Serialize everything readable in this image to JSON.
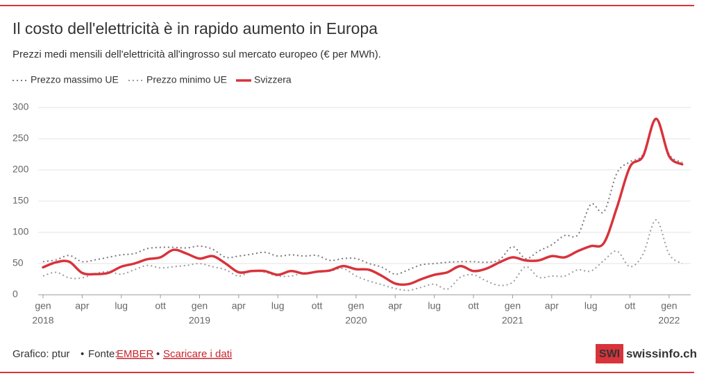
{
  "chart_data": {
    "type": "line",
    "title": "Il costo dell'elettricità è in rapido aumento in Europa",
    "subtitle": "Prezzi medi mensili dell'elettricità all'ingrosso sul mercato europeo (€ per MWh).",
    "categories": [
      "gen",
      null,
      null,
      "apr",
      null,
      null,
      "lug",
      null,
      null,
      "ott",
      null,
      null,
      "gen",
      null,
      null,
      "apr",
      null,
      null,
      "lug",
      null,
      null,
      "ott",
      null,
      null,
      "gen",
      null,
      null,
      "apr",
      null,
      null,
      "lug",
      null,
      null,
      "ott",
      null,
      null,
      "gen",
      null,
      null,
      "apr",
      null,
      null,
      "lug",
      null,
      null,
      "ott",
      null,
      null,
      "gen",
      null
    ],
    "year_labels": [
      "2018",
      "2019",
      "2020",
      "2021",
      "2022"
    ],
    "ylim": [
      0,
      300
    ],
    "yticks": [
      0,
      50,
      100,
      150,
      200,
      250,
      300
    ],
    "grid": true,
    "series": [
      {
        "name": "Prezzo massimo UE",
        "color": "#77777d",
        "style": "dotted",
        "values": [
          53,
          56,
          63,
          53,
          56,
          60,
          64,
          66,
          74,
          76,
          76,
          75,
          78,
          73,
          60,
          62,
          65,
          68,
          62,
          64,
          62,
          63,
          55,
          58,
          58,
          50,
          44,
          33,
          40,
          48,
          50,
          52,
          53,
          53,
          52,
          56,
          77,
          58,
          70,
          80,
          95,
          96,
          145,
          133,
          195,
          213,
          225,
          280,
          225,
          212
        ]
      },
      {
        "name": "Prezzo minimo UE",
        "color": "#9a9aa0",
        "style": "dotted",
        "values": [
          30,
          36,
          27,
          27,
          34,
          37,
          33,
          40,
          47,
          43,
          45,
          47,
          50,
          45,
          40,
          30,
          38,
          36,
          30,
          30,
          35,
          36,
          38,
          42,
          30,
          22,
          16,
          10,
          7,
          12,
          17,
          9,
          28,
          32,
          22,
          15,
          20,
          45,
          28,
          30,
          30,
          40,
          38,
          55,
          70,
          45,
          65,
          120,
          65,
          50
        ]
      },
      {
        "name": "Svizzera",
        "color": "#d8333b",
        "style": "solid",
        "values": [
          44,
          52,
          53,
          35,
          33,
          35,
          45,
          50,
          57,
          60,
          72,
          66,
          58,
          62,
          50,
          36,
          38,
          38,
          32,
          38,
          34,
          37,
          39,
          46,
          41,
          40,
          30,
          18,
          17,
          25,
          32,
          36,
          46,
          38,
          42,
          52,
          60,
          55,
          55,
          62,
          60,
          70,
          78,
          83,
          140,
          205,
          222,
          282,
          222,
          209
        ]
      }
    ]
  },
  "footer": {
    "credit": "Grafico: ptur",
    "source_label": "Fonte:",
    "source": "EMBER",
    "download": "Scaricare i dati"
  },
  "logo": {
    "mark": "SWI",
    "site": "swissinfo.ch"
  }
}
